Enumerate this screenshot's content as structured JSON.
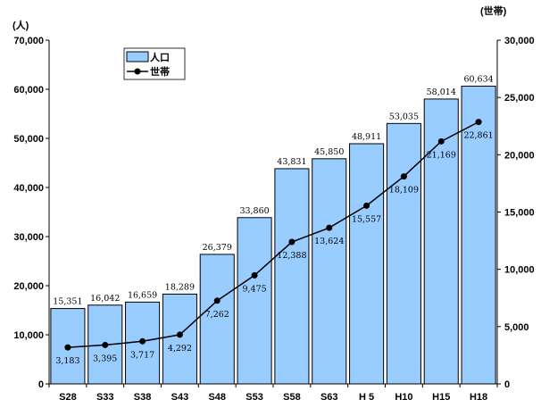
{
  "chart_data": {
    "type": "bar",
    "categories": [
      "S28",
      "S33",
      "S38",
      "S43",
      "S48",
      "S53",
      "S58",
      "S63",
      "H 5",
      "H10",
      "H15",
      "H18"
    ],
    "series": [
      {
        "name": "人口",
        "type": "bar",
        "axis": "left",
        "color": "#99ccff",
        "values": [
          15351,
          16042,
          16659,
          18289,
          26379,
          33860,
          43831,
          45850,
          48911,
          53035,
          58014,
          60634
        ],
        "labels": [
          "15,351",
          "16,042",
          "16,659",
          "18,289",
          "26,379",
          "33,860",
          "43,831",
          "45,850",
          "48,911",
          "53,035",
          "58,014",
          "60,634"
        ]
      },
      {
        "name": "世帯",
        "type": "line",
        "axis": "right",
        "color": "#000000",
        "values": [
          3183,
          3395,
          3717,
          4292,
          7262,
          9475,
          12388,
          13624,
          15557,
          18109,
          21169,
          22861
        ],
        "labels": [
          "3,183",
          "3,395",
          "3,717",
          "4,292",
          "7,262",
          "9,475",
          "12,388",
          "13,624",
          "15,557",
          "18,109",
          "21,169",
          "22,861"
        ]
      }
    ],
    "y_left": {
      "unit": "(人)",
      "ylim": [
        0,
        70000
      ],
      "ticks": [
        "0",
        "10,000",
        "20,000",
        "30,000",
        "40,000",
        "50,000",
        "60,000",
        "70,000"
      ]
    },
    "y_right": {
      "unit": "(世帯)",
      "ylim": [
        0,
        30000
      ],
      "ticks": [
        "0",
        "5,000",
        "10,000",
        "15,000",
        "20,000",
        "25,000",
        "30,000"
      ]
    },
    "grid": false,
    "legend": "top-left"
  }
}
